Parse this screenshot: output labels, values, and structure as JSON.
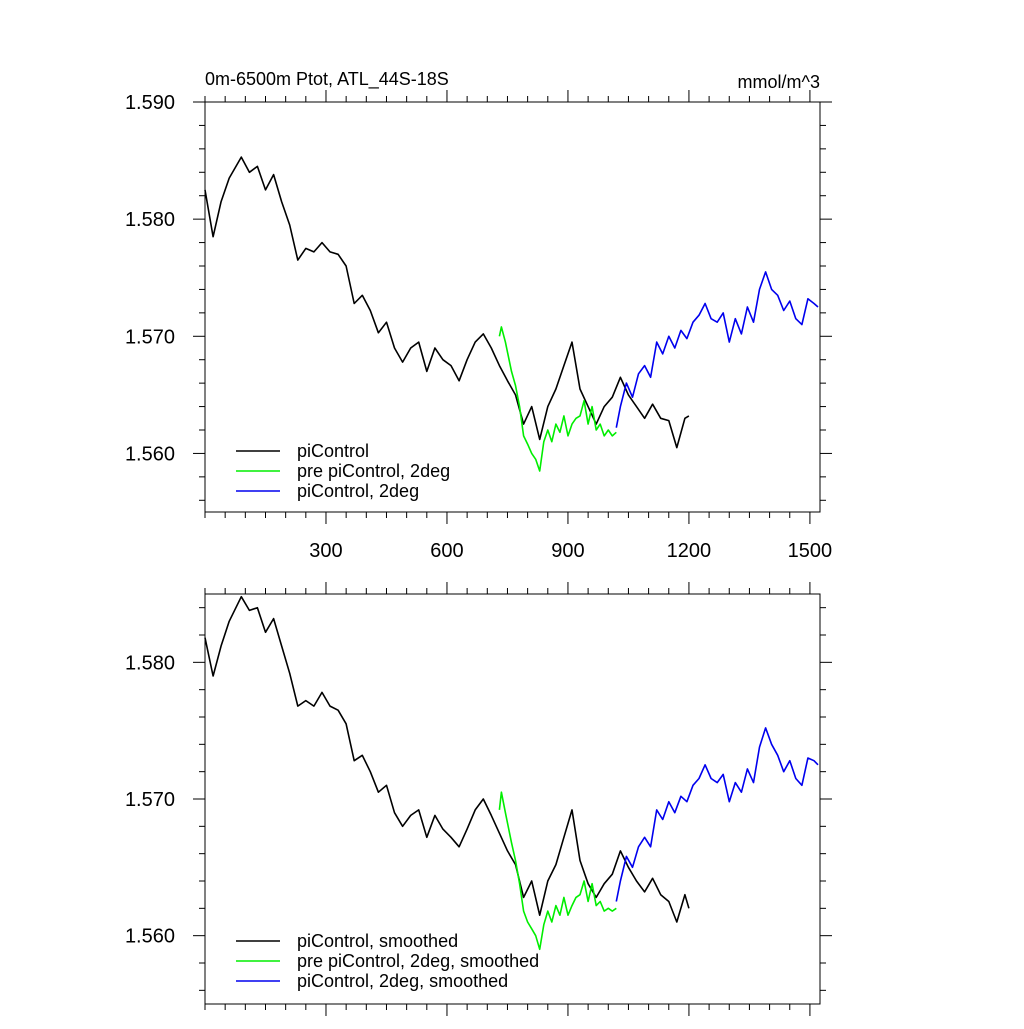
{
  "colors": {
    "piControl": "#000000",
    "pre_2deg": "#00ee00",
    "piControl_2deg": "#0000ee"
  },
  "chart_data": [
    {
      "type": "line",
      "title": "0m-6500m Ptot, ATL_44S-18S",
      "units": "mmol/m^3",
      "xlim": [
        0,
        1525
      ],
      "ylim": [
        1.555,
        1.59
      ],
      "xticks": [
        300,
        600,
        900,
        1200,
        1500
      ],
      "yticks": [
        1.56,
        1.57,
        1.58,
        1.59
      ],
      "yticklabels": [
        "1.560",
        "1.570",
        "1.580",
        "1.590"
      ],
      "legend_position": "bottom-left",
      "series": [
        {
          "name": "piControl",
          "color": "#000000",
          "x": [
            0,
            20,
            40,
            60,
            90,
            110,
            130,
            150,
            170,
            190,
            210,
            230,
            250,
            270,
            290,
            310,
            330,
            350,
            370,
            390,
            410,
            430,
            450,
            470,
            490,
            510,
            530,
            550,
            570,
            590,
            610,
            630,
            650,
            670,
            690,
            710,
            730,
            750,
            770,
            790,
            810,
            830,
            850,
            870,
            890,
            910,
            930,
            950,
            970,
            990,
            1010,
            1030,
            1050,
            1070,
            1090,
            1110,
            1130,
            1150,
            1170,
            1190,
            1200
          ],
          "y": [
            1.5825,
            1.5785,
            1.5815,
            1.5835,
            1.5853,
            1.584,
            1.5845,
            1.5825,
            1.5838,
            1.5815,
            1.5795,
            1.5765,
            1.5775,
            1.5772,
            1.578,
            1.5772,
            1.577,
            1.576,
            1.5728,
            1.5735,
            1.5722,
            1.5703,
            1.5712,
            1.569,
            1.5678,
            1.569,
            1.5695,
            1.567,
            1.569,
            1.568,
            1.5675,
            1.5662,
            1.568,
            1.5695,
            1.5702,
            1.569,
            1.5675,
            1.5662,
            1.565,
            1.5625,
            1.564,
            1.5612,
            1.564,
            1.5655,
            1.5675,
            1.5695,
            1.5655,
            1.564,
            1.5625,
            1.564,
            1.5648,
            1.5665,
            1.565,
            1.564,
            1.563,
            1.5642,
            1.563,
            1.5628,
            1.5605,
            1.563,
            1.5632
          ]
        },
        {
          "name": "pre piControl, 2deg",
          "color": "#00ee00",
          "x": [
            730,
            735,
            745,
            760,
            770,
            780,
            790,
            800,
            810,
            820,
            830,
            840,
            850,
            860,
            870,
            880,
            890,
            900,
            910,
            920,
            930,
            940,
            950,
            960,
            970,
            980,
            990,
            1000,
            1010,
            1020
          ],
          "y": [
            1.57,
            1.5708,
            1.5695,
            1.567,
            1.5658,
            1.564,
            1.5615,
            1.5608,
            1.56,
            1.5595,
            1.5585,
            1.561,
            1.562,
            1.561,
            1.5625,
            1.5618,
            1.5632,
            1.5615,
            1.5625,
            1.563,
            1.5632,
            1.5645,
            1.5625,
            1.564,
            1.562,
            1.5625,
            1.5615,
            1.562,
            1.5615,
            1.5618
          ]
        },
        {
          "name": "piControl, 2deg",
          "color": "#0000ee",
          "x": [
            1020,
            1030,
            1045,
            1060,
            1075,
            1090,
            1105,
            1120,
            1135,
            1150,
            1165,
            1180,
            1195,
            1210,
            1225,
            1240,
            1255,
            1270,
            1285,
            1300,
            1315,
            1330,
            1345,
            1360,
            1375,
            1390,
            1405,
            1420,
            1435,
            1450,
            1465,
            1480,
            1495,
            1510,
            1520
          ],
          "y": [
            1.5622,
            1.564,
            1.566,
            1.5648,
            1.5668,
            1.5675,
            1.5665,
            1.5695,
            1.5685,
            1.57,
            1.569,
            1.5705,
            1.5698,
            1.5712,
            1.5718,
            1.5728,
            1.5715,
            1.5712,
            1.572,
            1.5695,
            1.5715,
            1.5702,
            1.5725,
            1.5712,
            1.574,
            1.5755,
            1.574,
            1.5735,
            1.5722,
            1.573,
            1.5715,
            1.571,
            1.5732,
            1.5728,
            1.5725
          ]
        }
      ]
    },
    {
      "type": "line",
      "title": "",
      "xlim": [
        0,
        1525
      ],
      "ylim": [
        1.555,
        1.585
      ],
      "xticks": [
        300,
        600,
        900,
        1200,
        1500
      ],
      "yticks": [
        1.56,
        1.57,
        1.58
      ],
      "yticklabels": [
        "1.560",
        "1.570",
        "1.580"
      ],
      "legend_position": "bottom-left",
      "series": [
        {
          "name": "piControl, smoothed",
          "color": "#000000",
          "x": [
            0,
            20,
            40,
            60,
            90,
            110,
            130,
            150,
            170,
            190,
            210,
            230,
            250,
            270,
            290,
            310,
            330,
            350,
            370,
            390,
            410,
            430,
            450,
            470,
            490,
            510,
            530,
            550,
            570,
            590,
            610,
            630,
            650,
            670,
            690,
            710,
            730,
            750,
            770,
            790,
            810,
            830,
            850,
            870,
            890,
            910,
            930,
            950,
            970,
            990,
            1010,
            1030,
            1050,
            1070,
            1090,
            1110,
            1130,
            1150,
            1170,
            1190,
            1200
          ],
          "y": [
            1.5818,
            1.579,
            1.5812,
            1.583,
            1.5848,
            1.5838,
            1.584,
            1.5822,
            1.5832,
            1.5812,
            1.5792,
            1.5768,
            1.5772,
            1.5768,
            1.5778,
            1.5768,
            1.5765,
            1.5755,
            1.5728,
            1.5732,
            1.572,
            1.5705,
            1.571,
            1.569,
            1.568,
            1.5688,
            1.5692,
            1.5672,
            1.5688,
            1.5678,
            1.5672,
            1.5665,
            1.5678,
            1.5692,
            1.57,
            1.5688,
            1.5675,
            1.5662,
            1.5652,
            1.5628,
            1.564,
            1.5615,
            1.564,
            1.5652,
            1.5672,
            1.5692,
            1.5655,
            1.5638,
            1.5628,
            1.5638,
            1.5645,
            1.5662,
            1.565,
            1.564,
            1.5632,
            1.5642,
            1.563,
            1.5625,
            1.561,
            1.563,
            1.562
          ]
        },
        {
          "name": "pre piControl, 2deg, smoothed",
          "color": "#00ee00",
          "x": [
            730,
            735,
            745,
            760,
            770,
            780,
            790,
            800,
            810,
            820,
            830,
            840,
            850,
            860,
            870,
            880,
            890,
            900,
            910,
            920,
            930,
            940,
            950,
            960,
            970,
            980,
            990,
            1000,
            1010,
            1020
          ],
          "y": [
            1.5692,
            1.5705,
            1.569,
            1.5668,
            1.5655,
            1.5638,
            1.5618,
            1.561,
            1.5605,
            1.56,
            1.559,
            1.5608,
            1.5618,
            1.561,
            1.5622,
            1.5615,
            1.5628,
            1.5615,
            1.5622,
            1.5628,
            1.563,
            1.564,
            1.5625,
            1.5638,
            1.5622,
            1.5625,
            1.5618,
            1.562,
            1.5618,
            1.562
          ]
        },
        {
          "name": "piControl, 2deg, smoothed",
          "color": "#0000ee",
          "x": [
            1020,
            1030,
            1045,
            1060,
            1075,
            1090,
            1105,
            1120,
            1135,
            1150,
            1165,
            1180,
            1195,
            1210,
            1225,
            1240,
            1255,
            1270,
            1285,
            1300,
            1315,
            1330,
            1345,
            1360,
            1375,
            1390,
            1405,
            1420,
            1435,
            1450,
            1465,
            1480,
            1495,
            1510,
            1520
          ],
          "y": [
            1.5625,
            1.564,
            1.5658,
            1.565,
            1.5665,
            1.5672,
            1.5665,
            1.5692,
            1.5685,
            1.5698,
            1.569,
            1.5702,
            1.5698,
            1.571,
            1.5715,
            1.5725,
            1.5715,
            1.5712,
            1.5718,
            1.5698,
            1.5712,
            1.5705,
            1.5722,
            1.5712,
            1.5738,
            1.5752,
            1.574,
            1.5732,
            1.572,
            1.5728,
            1.5715,
            1.571,
            1.573,
            1.5728,
            1.5725
          ]
        }
      ]
    }
  ]
}
